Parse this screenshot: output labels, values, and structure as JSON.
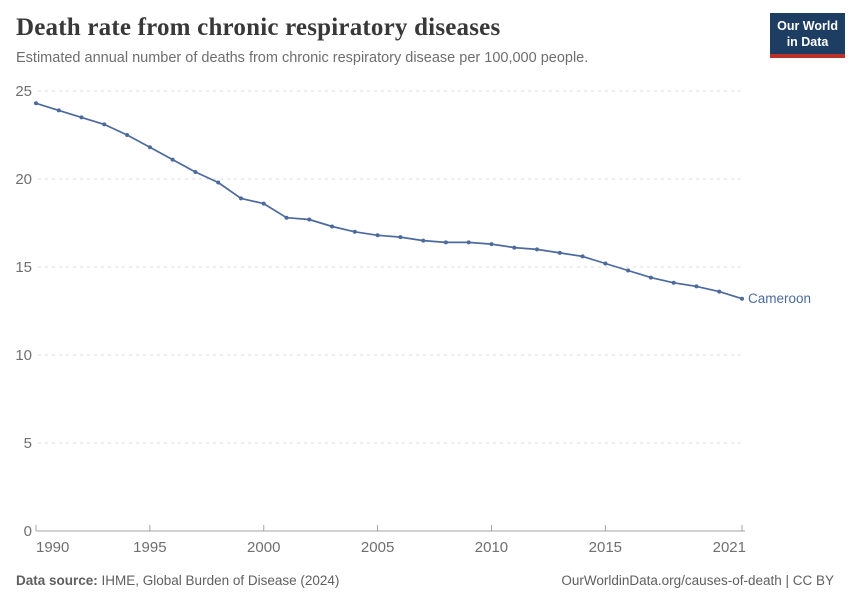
{
  "header": {
    "title": "Death rate from chronic respiratory diseases",
    "subtitle": "Estimated annual number of deaths from chronic respiratory disease per 100,000 people."
  },
  "logo": {
    "line1": "Our World",
    "line2": "in Data",
    "background_color": "#1d3d63",
    "underline_color": "#bc3228"
  },
  "chart_data": {
    "type": "line",
    "title": "Death rate from chronic respiratory diseases",
    "xlabel": "",
    "ylabel": "",
    "x": [
      1990,
      1991,
      1992,
      1993,
      1994,
      1995,
      1996,
      1997,
      1998,
      1999,
      2000,
      2001,
      2002,
      2003,
      2004,
      2005,
      2006,
      2007,
      2008,
      2009,
      2010,
      2011,
      2012,
      2013,
      2014,
      2015,
      2016,
      2017,
      2018,
      2019,
      2020,
      2021
    ],
    "series": [
      {
        "name": "Cameroon",
        "values": [
          24.3,
          23.9,
          23.5,
          23.1,
          22.5,
          21.8,
          21.1,
          20.4,
          19.8,
          18.9,
          18.6,
          17.8,
          17.7,
          17.3,
          17.0,
          16.8,
          16.7,
          16.5,
          16.4,
          16.4,
          16.3,
          16.1,
          16.0,
          15.8,
          15.6,
          15.2,
          14.8,
          14.4,
          14.1,
          13.9,
          13.6,
          13.2
        ]
      }
    ],
    "xlim": [
      1990,
      2021
    ],
    "ylim": [
      0,
      25
    ],
    "yticks": [
      0,
      5,
      10,
      15,
      20,
      25
    ],
    "xticks": [
      1990,
      1995,
      2000,
      2005,
      2010,
      2015,
      2021
    ],
    "grid": true,
    "legend_position": "end-of-line",
    "colors": {
      "line": "#4C6A9C",
      "grid": "#dddddd",
      "axis": "#a3a3a3",
      "tick_text": "#6f6f6f"
    }
  },
  "footer": {
    "source_label": "Data source:",
    "source_text": " IHME, Global Burden of Disease (2024)",
    "credit": "OurWorldinData.org/causes-of-death | CC BY"
  }
}
